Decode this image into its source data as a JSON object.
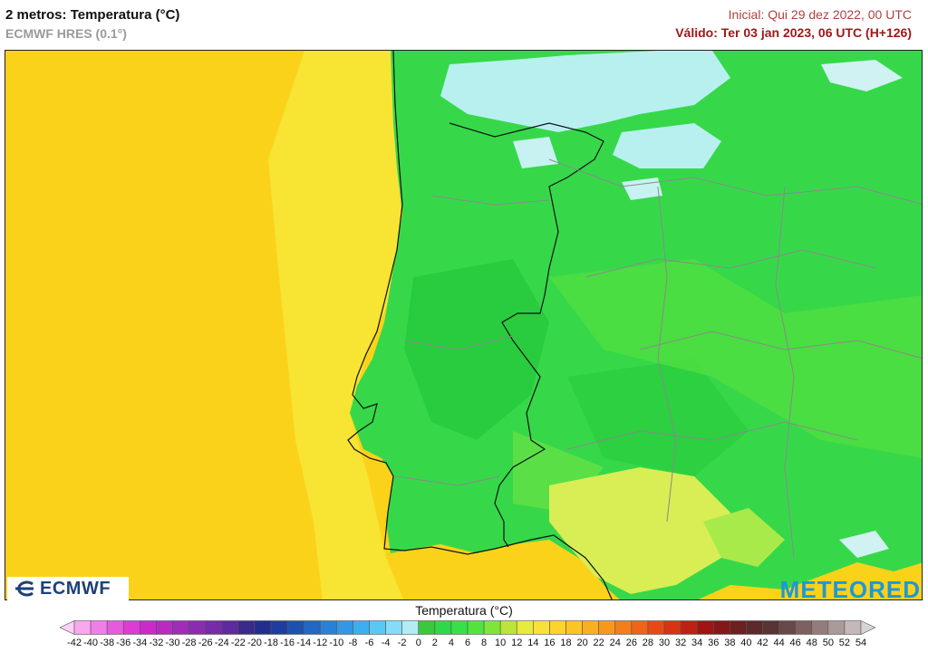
{
  "header": {
    "title": "2 metros: Temperatura (°C)",
    "subtitle": "ECMWF HRES (0.1°)",
    "initial": "Inicial: Qui 29 dez 2022, 00 UTC",
    "valid": "Válido: Ter 03 jan 2023, 06 UTC (H+126)"
  },
  "logos": {
    "left": "ECMWF",
    "right": "METEORED"
  },
  "legend": {
    "title": "Temperatura (°C)",
    "ticks": [
      "-42",
      "-40",
      "-38",
      "-36",
      "-34",
      "-32",
      "-30",
      "-28",
      "-26",
      "-24",
      "-22",
      "-20",
      "-18",
      "-16",
      "-14",
      "-12",
      "-10",
      "-8",
      "-6",
      "-4",
      "-2",
      "0",
      "2",
      "4",
      "6",
      "8",
      "10",
      "12",
      "14",
      "16",
      "18",
      "20",
      "22",
      "24",
      "26",
      "28",
      "30",
      "32",
      "34",
      "36",
      "38",
      "40",
      "42",
      "44",
      "46",
      "48",
      "50",
      "52",
      "54"
    ],
    "colors": [
      "#fdd0f5",
      "#f7a8ee",
      "#ef7fe6",
      "#e65add",
      "#dd3bd3",
      "#cc2ac8",
      "#b82ac0",
      "#a02cb9",
      "#8a2cb2",
      "#742ca8",
      "#5e2a9e",
      "#3a2a8a",
      "#222e8e",
      "#1e3d9e",
      "#1f50b0",
      "#2366c4",
      "#2a80d6",
      "#3298e4",
      "#3cb0ee",
      "#58c8f4",
      "#84dcf6",
      "#b4ecf6",
      "#3ac83e",
      "#2ed84a",
      "#38e048",
      "#52e43e",
      "#7ee638",
      "#bde43a",
      "#e8ea3c",
      "#f8e23a",
      "#fcd42c",
      "#fcc424",
      "#f9b020",
      "#f7981c",
      "#f47e18",
      "#ef6416",
      "#e84a14",
      "#d83414",
      "#c02014",
      "#a01414",
      "#841818",
      "#6c2020",
      "#5c2a2a",
      "#583434",
      "#684848",
      "#7e6060",
      "#947c7c",
      "#aa9a9a",
      "#c4b8b8",
      "#d8d4d4"
    ]
  },
  "map": {
    "colors": {
      "ocean": "#fbd21a",
      "ocean_coast": "#f7e530",
      "land_green": "#36d84a",
      "land_dark": "#22c43a",
      "land_light": "#66e246",
      "cold": "#b8f0f0",
      "warm": "#d8ee54",
      "border": "#111111",
      "region": "#8a8a8a"
    }
  }
}
